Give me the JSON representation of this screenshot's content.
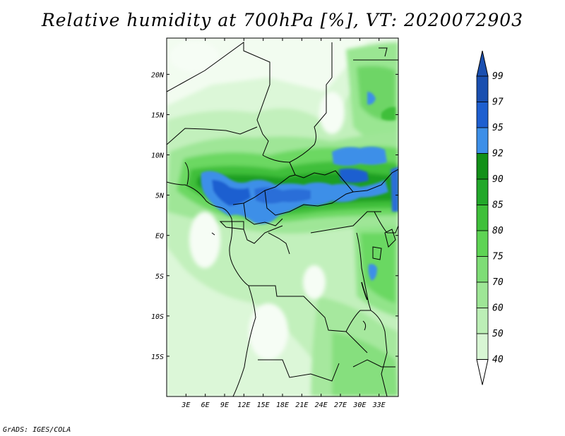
{
  "title": "Relative humidity at 700hPa [%], VT: 2020072903",
  "credit": "GrADS: IGES/COLA",
  "map": {
    "lon_range": [
      0,
      36
    ],
    "lat_range": [
      -20,
      24.5
    ],
    "lon_ticks": [
      {
        "value": 3,
        "label": "3E"
      },
      {
        "value": 6,
        "label": "6E"
      },
      {
        "value": 9,
        "label": "9E"
      },
      {
        "value": 12,
        "label": "12E"
      },
      {
        "value": 15,
        "label": "15E"
      },
      {
        "value": 18,
        "label": "18E"
      },
      {
        "value": 21,
        "label": "21E"
      },
      {
        "value": 24,
        "label": "24E"
      },
      {
        "value": 27,
        "label": "27E"
      },
      {
        "value": 30,
        "label": "30E"
      },
      {
        "value": 33,
        "label": "33E"
      }
    ],
    "lat_ticks": [
      {
        "value": 20,
        "label": "20N"
      },
      {
        "value": 15,
        "label": "15N"
      },
      {
        "value": 10,
        "label": "10N"
      },
      {
        "value": 5,
        "label": "5N"
      },
      {
        "value": 0,
        "label": "EQ"
      },
      {
        "value": -5,
        "label": "5S"
      },
      {
        "value": -10,
        "label": "10S"
      },
      {
        "value": -15,
        "label": "15S"
      }
    ]
  },
  "colorbar": {
    "levels": [
      "40",
      "50",
      "60",
      "70",
      "75",
      "80",
      "85",
      "90",
      "92",
      "95",
      "97",
      "99"
    ],
    "colors": [
      "#f0fcef",
      "#d8f6d4",
      "#bcefb6",
      "#9ee696",
      "#7edd76",
      "#5ed454",
      "#3fc03a",
      "#22a82a",
      "#129018",
      "#3d8fe8",
      "#1e5fd0",
      "#1a4fb0",
      "#ffffff"
    ]
  }
}
